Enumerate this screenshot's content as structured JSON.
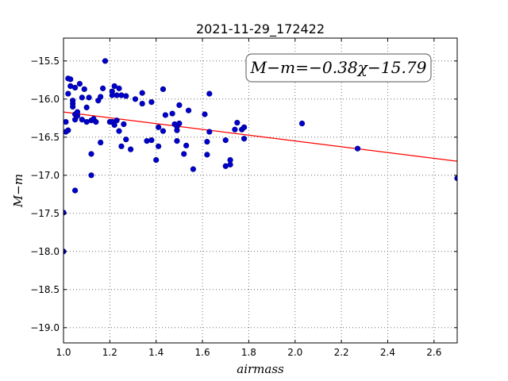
{
  "chart_data": {
    "type": "scatter",
    "title": "2021-11-29_172422",
    "xlabel": "airmass",
    "ylabel": "M−m",
    "xlim": [
      1.0,
      2.7
    ],
    "ylim": [
      -19.2,
      -15.2
    ],
    "y_inverted": true,
    "grid": true,
    "x_ticks": [
      1.0,
      1.2,
      1.4,
      1.6,
      1.8,
      2.0,
      2.2,
      2.4,
      2.6
    ],
    "x_tick_labels": [
      "1.0",
      "1.2",
      "1.4",
      "1.6",
      "1.8",
      "2.0",
      "2.2",
      "2.4",
      "2.6"
    ],
    "y_ticks": [
      -15.5,
      -16.0,
      -16.5,
      -17.0,
      -17.5,
      -18.0,
      -18.5,
      -19.0
    ],
    "y_tick_labels": [
      "−15.5",
      "−16.0",
      "−16.5",
      "−17.0",
      "−17.5",
      "−18.0",
      "−18.5",
      "−19.0"
    ],
    "annotation": "M−m=−0.38χ−15.79",
    "fit": {
      "slope": -0.38,
      "intercept": -15.79,
      "color": "#ff0000"
    },
    "marker_color": "#0000cc",
    "points": [
      [
        1.0,
        -17.49
      ],
      [
        1.0,
        -18.0
      ],
      [
        1.01,
        -16.3
      ],
      [
        1.01,
        -16.43
      ],
      [
        1.02,
        -16.41
      ],
      [
        1.02,
        -15.73
      ],
      [
        1.03,
        -15.74
      ],
      [
        1.02,
        -15.93
      ],
      [
        1.03,
        -15.83
      ],
      [
        1.04,
        -16.02
      ],
      [
        1.04,
        -16.06
      ],
      [
        1.04,
        -16.1
      ],
      [
        1.05,
        -15.85
      ],
      [
        1.05,
        -16.2
      ],
      [
        1.05,
        -16.27
      ],
      [
        1.06,
        -16.22
      ],
      [
        1.06,
        -16.17
      ],
      [
        1.07,
        -15.8
      ],
      [
        1.08,
        -16.27
      ],
      [
        1.08,
        -15.98
      ],
      [
        1.09,
        -15.87
      ],
      [
        1.1,
        -16.11
      ],
      [
        1.1,
        -16.3
      ],
      [
        1.11,
        -15.98
      ],
      [
        1.12,
        -16.28
      ],
      [
        1.13,
        -16.26
      ],
      [
        1.14,
        -16.3
      ],
      [
        1.15,
        -16.02
      ],
      [
        1.16,
        -15.97
      ],
      [
        1.17,
        -15.86
      ],
      [
        1.18,
        -15.5
      ],
      [
        1.12,
        -16.72
      ],
      [
        1.16,
        -16.57
      ],
      [
        1.12,
        -17.0
      ],
      [
        1.05,
        -17.2
      ],
      [
        1.2,
        -16.3
      ],
      [
        1.21,
        -16.3
      ],
      [
        1.21,
        -15.95
      ],
      [
        1.21,
        -15.9
      ],
      [
        1.22,
        -15.83
      ],
      [
        1.22,
        -16.34
      ],
      [
        1.23,
        -15.95
      ],
      [
        1.23,
        -16.28
      ],
      [
        1.24,
        -15.86
      ],
      [
        1.24,
        -16.42
      ],
      [
        1.25,
        -15.95
      ],
      [
        1.25,
        -16.62
      ],
      [
        1.26,
        -16.33
      ],
      [
        1.27,
        -15.96
      ],
      [
        1.27,
        -16.53
      ],
      [
        1.29,
        -16.66
      ],
      [
        1.31,
        -16.0
      ],
      [
        1.34,
        -15.92
      ],
      [
        1.34,
        -16.06
      ],
      [
        1.36,
        -16.55
      ],
      [
        1.38,
        -16.54
      ],
      [
        1.38,
        -16.04
      ],
      [
        1.4,
        -16.8
      ],
      [
        1.41,
        -16.37
      ],
      [
        1.41,
        -16.62
      ],
      [
        1.43,
        -15.87
      ],
      [
        1.43,
        -16.42
      ],
      [
        1.44,
        -16.21
      ],
      [
        1.47,
        -16.19
      ],
      [
        1.48,
        -16.33
      ],
      [
        1.49,
        -16.36
      ],
      [
        1.49,
        -16.55
      ],
      [
        1.49,
        -16.41
      ],
      [
        1.5,
        -16.08
      ],
      [
        1.5,
        -16.32
      ],
      [
        1.52,
        -16.72
      ],
      [
        1.53,
        -16.61
      ],
      [
        1.54,
        -16.15
      ],
      [
        1.56,
        -16.92
      ],
      [
        1.61,
        -16.2
      ],
      [
        1.62,
        -16.56
      ],
      [
        1.62,
        -16.73
      ],
      [
        1.63,
        -16.43
      ],
      [
        1.63,
        -15.93
      ],
      [
        1.7,
        -16.88
      ],
      [
        1.7,
        -16.54
      ],
      [
        1.72,
        -16.86
      ],
      [
        1.72,
        -16.8
      ],
      [
        1.74,
        -16.4
      ],
      [
        1.75,
        -16.31
      ],
      [
        1.77,
        -16.4
      ],
      [
        1.78,
        -16.37
      ],
      [
        1.78,
        -16.52
      ],
      [
        2.03,
        -16.32
      ],
      [
        2.27,
        -16.65
      ],
      [
        2.7,
        -17.04
      ]
    ]
  }
}
